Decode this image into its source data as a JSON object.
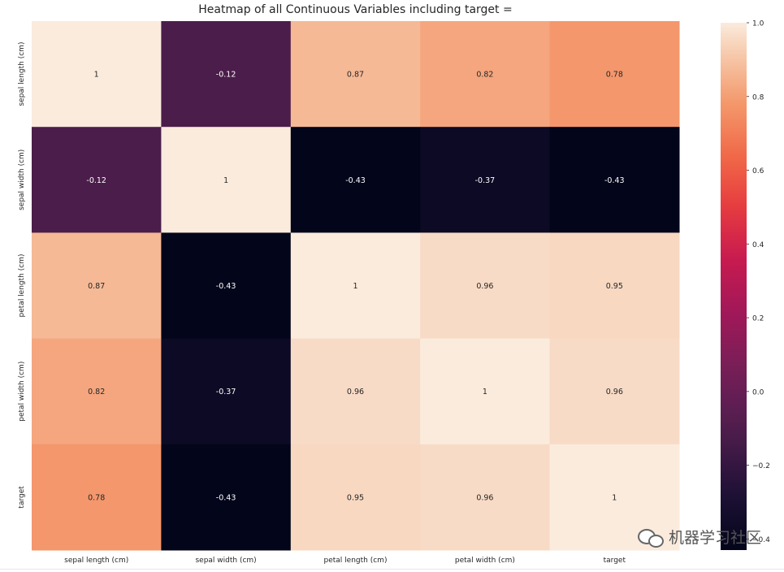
{
  "chart_data": {
    "type": "heatmap",
    "title": "Heatmap of all Continuous Variables including target =",
    "x_labels": [
      "sepal length (cm)",
      "sepal width (cm)",
      "petal length (cm)",
      "petal width (cm)",
      "target"
    ],
    "y_labels": [
      "sepal length (cm)",
      "sepal width (cm)",
      "petal length (cm)",
      "petal width (cm)",
      "target"
    ],
    "values": [
      [
        1,
        -0.12,
        0.87,
        0.82,
        0.78
      ],
      [
        -0.12,
        1,
        -0.43,
        -0.37,
        -0.43
      ],
      [
        0.87,
        -0.43,
        1,
        0.96,
        0.95
      ],
      [
        0.82,
        -0.37,
        0.96,
        1,
        0.96
      ],
      [
        0.78,
        -0.43,
        0.95,
        0.96,
        1
      ]
    ],
    "annotations": [
      [
        "1",
        "-0.12",
        "0.87",
        "0.82",
        "0.78"
      ],
      [
        "-0.12",
        "1",
        "-0.43",
        "-0.37",
        "-0.43"
      ],
      [
        "0.87",
        "-0.43",
        "1",
        "0.96",
        "0.95"
      ],
      [
        "0.82",
        "-0.37",
        "0.96",
        "1",
        "0.96"
      ],
      [
        "0.78",
        "-0.43",
        "0.95",
        "0.96",
        "1"
      ]
    ],
    "colorbar": {
      "vmin": -0.43,
      "vmax": 1.0,
      "ticks": [
        1.0,
        0.8,
        0.6,
        0.4,
        0.2,
        0.0,
        -0.2,
        -0.4
      ],
      "tick_labels": [
        "1.0",
        "0.8",
        "0.6",
        "0.4",
        "0.2",
        "0.0",
        "−0.2",
        "−0.4"
      ],
      "colormap": "rocket"
    }
  },
  "watermark": {
    "text": "机器学习社区"
  }
}
